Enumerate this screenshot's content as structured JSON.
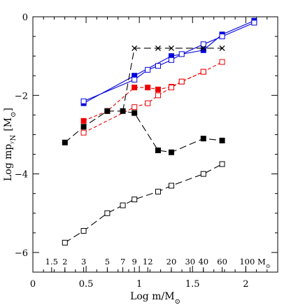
{
  "chart_data": {
    "type": "scatter",
    "title": "",
    "xlabel": "Log m/M",
    "xlabel_sub": "⊙",
    "ylabel": "Log mp",
    "ylabel_sub": "ʸN",
    "ylabel_unit": "[M",
    "ylabel_unit_sub": "⊙",
    "ylabel_unit_close": "]",
    "xlim": [
      0,
      2.3
    ],
    "ylim": [
      -6.5,
      0
    ],
    "xticks": [
      0,
      0.5,
      1,
      1.5,
      2
    ],
    "xtick_labels": [
      "0",
      "0.5",
      "1",
      "1.5",
      "2"
    ],
    "yticks": [
      0,
      -2,
      -4,
      -6
    ],
    "ytick_labels": [
      "0",
      "−2",
      "−4",
      "−6"
    ],
    "grid": false,
    "mass_scale": {
      "ticks": [
        1.5,
        2,
        3,
        5,
        7,
        9,
        12,
        20,
        30,
        40,
        60,
        100
      ],
      "labels": [
        "1.5",
        "2",
        "3",
        "5",
        "7",
        "9",
        "12",
        "20",
        "30",
        "40",
        "60",
        "100 M"
      ],
      "unit_sub": "⊙"
    },
    "series": [
      {
        "color": "#0000dd",
        "marker": "square-filled",
        "line": "solid",
        "x": [
          0.477,
          0.954,
          1.301,
          1.602,
          1.778,
          2.079
        ],
        "y": [
          -2.2,
          -1.5,
          -1.0,
          -0.85,
          -0.45,
          -0.1
        ]
      },
      {
        "color": "#0000dd",
        "marker": "square-open",
        "line": "solid",
        "x": [
          0.477,
          0.954,
          1.079,
          1.176,
          1.301,
          1.398,
          1.602,
          1.778,
          2.079
        ],
        "y": [
          -2.15,
          -1.6,
          -1.35,
          -1.25,
          -1.1,
          -0.95,
          -0.7,
          -0.5,
          -0.15
        ]
      },
      {
        "color": "#ee0000",
        "marker": "square-filled",
        "line": "dashed",
        "x": [
          0.477,
          0.699,
          0.954,
          1.079,
          1.176,
          1.301,
          1.398,
          1.602
        ],
        "y": [
          -2.65,
          -2.4,
          -1.8,
          -1.8,
          -1.85,
          -1.78,
          -1.65,
          -1.4
        ]
      },
      {
        "color": "#ee0000",
        "marker": "square-open",
        "line": "dashed",
        "x": [
          0.477,
          0.954,
          1.079,
          1.176,
          1.301,
          1.398,
          1.602,
          1.778
        ],
        "y": [
          -2.95,
          -2.3,
          -2.2,
          -2.0,
          -1.8,
          -1.65,
          -1.4,
          -1.15
        ]
      },
      {
        "color": "#000000",
        "marker": "square-filled",
        "line": "long-dashed",
        "x": [
          0.301,
          0.477,
          0.699,
          0.845,
          0.954,
          1.176,
          1.301,
          1.602,
          1.778
        ],
        "y": [
          -3.2,
          -2.8,
          -2.4,
          -2.4,
          -2.45,
          -3.4,
          -3.45,
          -3.1,
          -3.15
        ]
      },
      {
        "color": "#000000",
        "marker": "cross",
        "line": "long-dashed",
        "x": [
          0.845,
          0.954,
          1.176,
          1.301,
          1.602,
          1.778
        ],
        "y": [
          -2.4,
          -0.8,
          -0.8,
          -0.8,
          -0.8,
          -0.8
        ]
      },
      {
        "color": "#000000",
        "marker": "square-open",
        "line": "long-dashed",
        "x": [
          0.301,
          0.477,
          0.699,
          0.845,
          0.954,
          1.176,
          1.301,
          1.602,
          1.778
        ],
        "y": [
          -5.75,
          -5.45,
          -5.0,
          -4.8,
          -4.65,
          -4.45,
          -4.3,
          -4.0,
          -3.75
        ]
      }
    ]
  }
}
